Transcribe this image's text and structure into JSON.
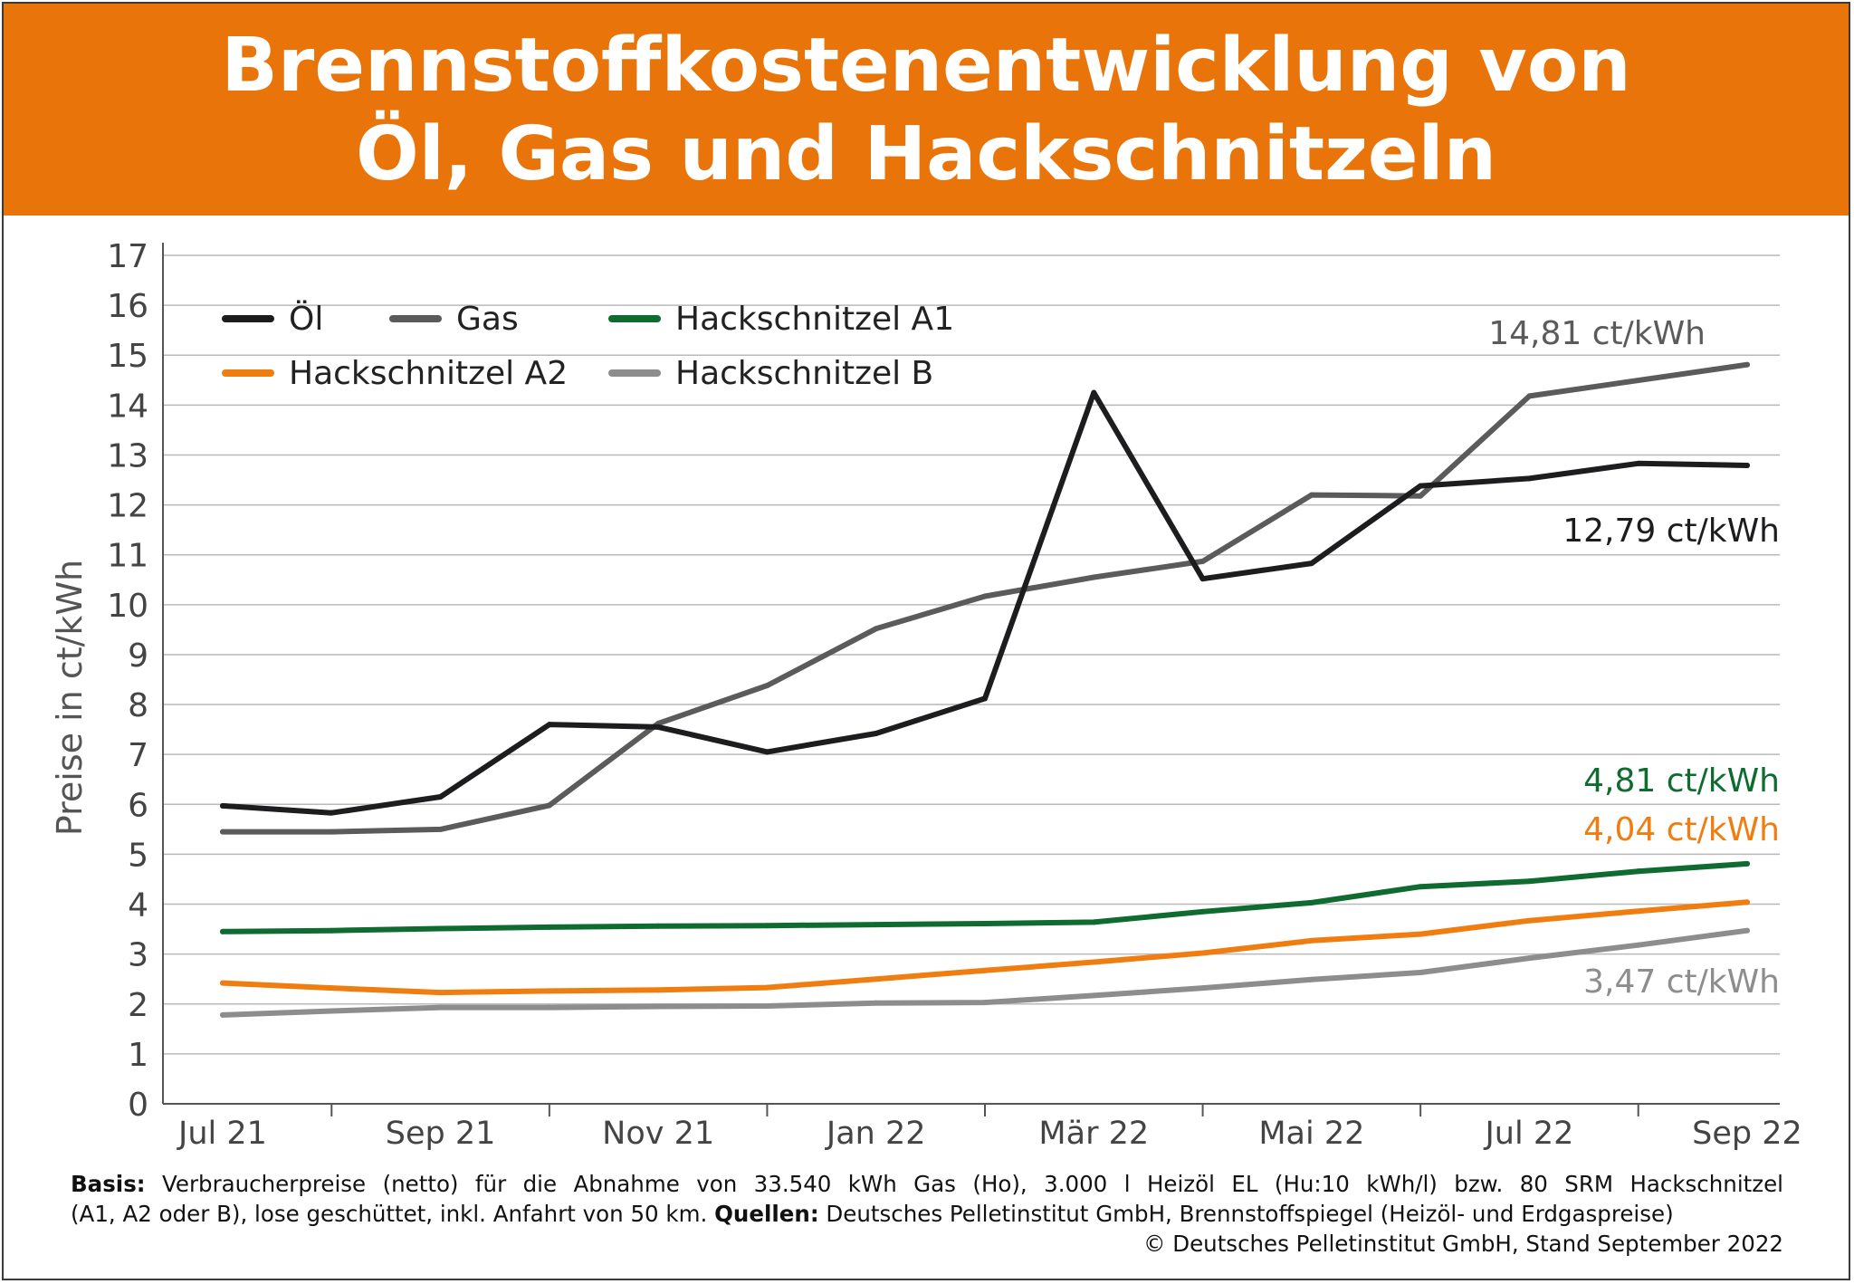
{
  "title": "Brennstoffkostenentwicklung von\nÖl, Gas und Hackschnitzeln",
  "footer": {
    "basis_label": "Basis:",
    "basis_text_1": "Verbraucherpreise (netto) für die Abnahme von 33.540 kWh Gas (Ho), 3.000 l Heizöl EL (Hu:10 kWh/l) bzw. 80 SRM Hackschnitzel",
    "basis_text_2": "(A1, A2 oder B), lose geschüttet, inkl. Anfahrt von 50 km.",
    "sources_label": "Quellen:",
    "sources_text": "Deutsches Pelletinstitut GmbH, Brennstoffspiegel (Heizöl- und Erdgaspreise)",
    "copyright": "© Deutsches Pelletinstitut GmbH, Stand September 2022"
  },
  "chart_data": {
    "type": "line",
    "title": "Brennstoffkostenentwicklung von Öl, Gas und Hackschnitzeln",
    "ylabel": "Preise in ct/kWh",
    "xlabel": "",
    "ylim": [
      0,
      17
    ],
    "y_ticks": [
      0,
      1,
      2,
      3,
      4,
      5,
      6,
      7,
      8,
      9,
      10,
      11,
      12,
      13,
      14,
      15,
      16,
      17
    ],
    "grid": true,
    "legend_position": "top-left",
    "x": [
      "Jul 21",
      "Aug 21",
      "Sep 21",
      "Okt 21",
      "Nov 21",
      "Dez 21",
      "Jan 22",
      "Feb 22",
      "Mär 22",
      "Apr 22",
      "Mai 22",
      "Jun 22",
      "Jul 22",
      "Aug 22",
      "Sep 22"
    ],
    "x_tick_labels": [
      "Jul 21",
      "Sep 21",
      "Nov 21",
      "Jan 22",
      "Mär 22",
      "Mai 22",
      "Jul 22",
      "Sep 22"
    ],
    "series": [
      {
        "name": "Öl",
        "color": "#1d1d1f",
        "values": [
          5.97,
          5.83,
          6.15,
          7.6,
          7.55,
          7.05,
          7.42,
          8.12,
          14.25,
          10.52,
          10.83,
          12.38,
          12.53,
          12.83,
          12.79
        ]
      },
      {
        "name": "Gas",
        "color": "#5b5b5b",
        "values": [
          5.45,
          5.45,
          5.5,
          5.98,
          7.62,
          8.38,
          9.52,
          10.17,
          10.55,
          10.87,
          12.2,
          12.18,
          14.18,
          null,
          14.81
        ]
      },
      {
        "name": "Hackschnitzel A1",
        "color": "#0f6b30",
        "values": [
          3.45,
          3.47,
          3.51,
          3.54,
          3.56,
          3.57,
          3.59,
          3.61,
          3.64,
          3.85,
          4.03,
          4.35,
          4.46,
          4.66,
          4.81
        ]
      },
      {
        "name": "Hackschnitzel A2",
        "color": "#f07d10",
        "values": [
          2.42,
          2.32,
          2.23,
          2.26,
          2.28,
          2.33,
          2.5,
          2.67,
          2.84,
          3.02,
          3.27,
          3.4,
          3.67,
          3.86,
          4.04
        ]
      },
      {
        "name": "Hackschnitzel B",
        "color": "#8d8d8d",
        "values": [
          1.78,
          1.86,
          1.93,
          1.93,
          1.95,
          1.96,
          2.02,
          2.03,
          2.17,
          2.32,
          2.49,
          2.63,
          2.92,
          3.18,
          3.47
        ]
      }
    ],
    "annotations": [
      {
        "text": "14,81 ct/kWh",
        "series": "Gas",
        "color": "#5b5b5b"
      },
      {
        "text": "12,79 ct/kWh",
        "series": "Öl",
        "color": "#1d1d1f"
      },
      {
        "text": "4,81 ct/kWh",
        "series": "Hackschnitzel A1",
        "color": "#0f6b30"
      },
      {
        "text": "4,04 ct/kWh",
        "series": "Hackschnitzel A2",
        "color": "#f07d10"
      },
      {
        "text": "3,47 ct/kWh",
        "series": "Hackschnitzel B",
        "color": "#8d8d8d"
      }
    ]
  }
}
